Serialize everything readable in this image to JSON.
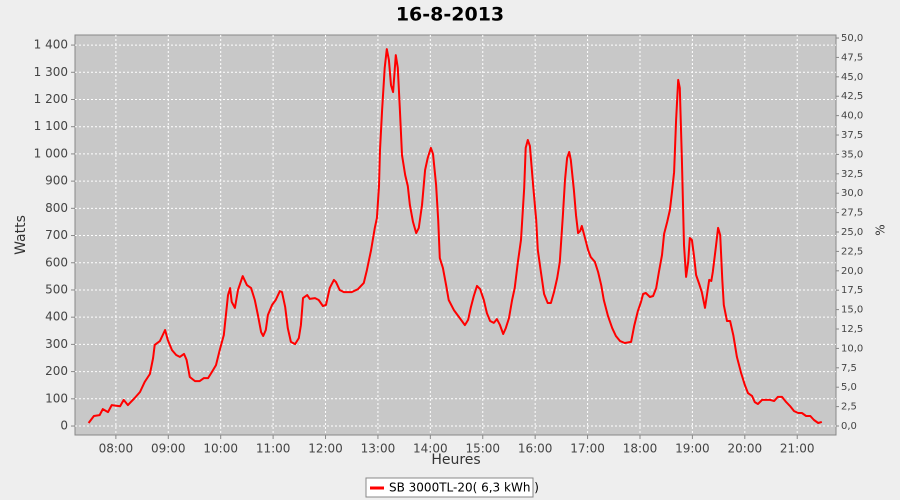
{
  "chart_data": {
    "type": "line",
    "title": "16-8-2013",
    "xlabel": "Heures",
    "ylabel": "Watts",
    "y2label": "%",
    "grid": true,
    "xlim": [
      7.22,
      21.74
    ],
    "ylim": [
      -33,
      1437
    ],
    "y2lim": [
      -1.16,
      50.39
    ],
    "xticks": [
      {
        "value": 8,
        "label": "08:00"
      },
      {
        "value": 9,
        "label": "09:00"
      },
      {
        "value": 10,
        "label": "10:00"
      },
      {
        "value": 11,
        "label": "11:00"
      },
      {
        "value": 12,
        "label": "12:00"
      },
      {
        "value": 13,
        "label": "13:00"
      },
      {
        "value": 14,
        "label": "14:00"
      },
      {
        "value": 15,
        "label": "15:00"
      },
      {
        "value": 16,
        "label": "16:00"
      },
      {
        "value": 17,
        "label": "17:00"
      },
      {
        "value": 18,
        "label": "18:00"
      },
      {
        "value": 19,
        "label": "19:00"
      },
      {
        "value": 20,
        "label": "20:00"
      },
      {
        "value": 21,
        "label": "21:00"
      }
    ],
    "yticks": [
      0,
      100,
      200,
      300,
      400,
      500,
      600,
      700,
      800,
      900,
      {
        "value": 1000,
        "label": "1 000"
      },
      {
        "value": 1100,
        "label": "1 100"
      },
      {
        "value": 1200,
        "label": "1 200"
      },
      {
        "value": 1300,
        "label": "1 300"
      },
      {
        "value": 1400,
        "label": "1 400"
      }
    ],
    "y2ticks": [
      {
        "value": 0,
        "label": "0,0"
      },
      {
        "value": 2.5,
        "label": "2,5"
      },
      {
        "value": 5,
        "label": "5,0"
      },
      {
        "value": 7.5,
        "label": "7,5"
      },
      {
        "value": 10,
        "label": "10,0"
      },
      {
        "value": 12.5,
        "label": "12,5"
      },
      {
        "value": 15,
        "label": "15,0"
      },
      {
        "value": 17.5,
        "label": "17,5"
      },
      {
        "value": 20,
        "label": "20,0"
      },
      {
        "value": 22.5,
        "label": "22,5"
      },
      {
        "value": 25,
        "label": "25,0"
      },
      {
        "value": 27.5,
        "label": "27,5"
      },
      {
        "value": 30,
        "label": "30,0"
      },
      {
        "value": 32.5,
        "label": "32,5"
      },
      {
        "value": 35,
        "label": "35,0"
      },
      {
        "value": 37.5,
        "label": "37,5"
      },
      {
        "value": 40,
        "label": "40,0"
      },
      {
        "value": 42.5,
        "label": "42,5"
      },
      {
        "value": 45,
        "label": "45,0"
      },
      {
        "value": 47.5,
        "label": "47,5"
      },
      {
        "value": 50,
        "label": "50,0"
      }
    ],
    "x": [
      7.48,
      7.58,
      7.69,
      7.75,
      7.85,
      7.92,
      8.08,
      8.15,
      8.23,
      8.36,
      8.46,
      8.55,
      8.65,
      8.71,
      8.74,
      8.84,
      8.94,
      8.99,
      9.07,
      9.15,
      9.22,
      9.3,
      9.35,
      9.41,
      9.51,
      9.6,
      9.68,
      9.76,
      9.83,
      9.91,
      9.98,
      10.06,
      10.14,
      10.18,
      10.21,
      10.27,
      10.33,
      10.42,
      10.5,
      10.58,
      10.65,
      10.71,
      10.77,
      10.81,
      10.86,
      10.9,
      10.98,
      11.05,
      11.13,
      11.17,
      11.23,
      11.28,
      11.34,
      11.42,
      11.49,
      11.53,
      11.57,
      11.65,
      11.7,
      11.8,
      11.87,
      11.95,
      12.01,
      12.08,
      12.16,
      12.2,
      12.27,
      12.35,
      12.5,
      12.62,
      12.73,
      12.79,
      12.87,
      12.94,
      12.98,
      13.02,
      13.04,
      13.08,
      13.13,
      13.17,
      13.21,
      13.25,
      13.29,
      13.32,
      13.34,
      13.38,
      13.42,
      13.46,
      13.52,
      13.57,
      13.61,
      13.67,
      13.73,
      13.78,
      13.84,
      13.9,
      13.95,
      14.01,
      14.05,
      14.11,
      14.15,
      14.18,
      14.24,
      14.3,
      14.35,
      14.45,
      14.56,
      14.66,
      14.72,
      14.77,
      14.83,
      14.89,
      14.95,
      15.02,
      15.08,
      15.14,
      15.21,
      15.27,
      15.33,
      15.39,
      15.44,
      15.5,
      15.56,
      15.61,
      15.67,
      15.73,
      15.79,
      15.82,
      15.86,
      15.9,
      15.96,
      16.02,
      16.05,
      16.11,
      16.17,
      16.24,
      16.3,
      16.36,
      16.42,
      16.47,
      16.53,
      16.57,
      16.61,
      16.65,
      16.68,
      16.74,
      16.78,
      16.82,
      16.86,
      16.89,
      16.95,
      17.01,
      17.06,
      17.14,
      17.2,
      17.26,
      17.31,
      17.39,
      17.47,
      17.54,
      17.62,
      17.71,
      17.83,
      17.89,
      17.96,
      18.02,
      18.06,
      18.11,
      18.19,
      18.25,
      18.31,
      18.36,
      18.42,
      18.46,
      18.52,
      18.57,
      18.61,
      18.65,
      18.69,
      18.73,
      18.76,
      18.8,
      18.84,
      18.88,
      18.92,
      18.95,
      18.99,
      19.03,
      19.07,
      19.13,
      19.18,
      19.24,
      19.28,
      19.32,
      19.36,
      19.39,
      19.45,
      19.49,
      19.53,
      19.57,
      19.6,
      19.66,
      19.72,
      19.78,
      19.85,
      19.93,
      20.0,
      20.06,
      20.14,
      20.19,
      20.25,
      20.33,
      20.48,
      20.56,
      20.63,
      20.71,
      20.79,
      20.86,
      20.94,
      21.02,
      21.09,
      21.17,
      21.25,
      21.32,
      21.4,
      21.47
    ],
    "series": [
      {
        "name": "SB 3000TL-20( 6,3 kWh )",
        "color": "#ff0000",
        "values": [
          11,
          37,
          40,
          62,
          51,
          77,
          73,
          96,
          77,
          103,
          125,
          162,
          191,
          250,
          298,
          312,
          353,
          316,
          279,
          261,
          254,
          265,
          243,
          180,
          165,
          165,
          176,
          176,
          198,
          224,
          279,
          334,
          481,
          507,
          456,
          434,
          500,
          551,
          518,
          507,
          463,
          408,
          345,
          331,
          353,
          408,
          445,
          463,
          496,
          492,
          437,
          360,
          309,
          301,
          323,
          371,
          470,
          481,
          467,
          470,
          463,
          441,
          445,
          507,
          537,
          529,
          500,
          492,
          492,
          503,
          526,
          573,
          647,
          728,
          764,
          882,
          1014,
          1161,
          1316,
          1385,
          1345,
          1253,
          1227,
          1308,
          1363,
          1316,
          1161,
          996,
          922,
          882,
          812,
          750,
          709,
          728,
          812,
          941,
          985,
          1022,
          1000,
          886,
          757,
          617,
          581,
          518,
          463,
          426,
          397,
          371,
          390,
          434,
          478,
          515,
          503,
          463,
          415,
          386,
          379,
          393,
          371,
          338,
          360,
          397,
          463,
          507,
          603,
          684,
          875,
          1022,
          1051,
          1029,
          886,
          757,
          647,
          566,
          485,
          452,
          452,
          492,
          544,
          603,
          775,
          904,
          985,
          1007,
          978,
          867,
          775,
          709,
          717,
          735,
          691,
          647,
          621,
          603,
          566,
          518,
          463,
          404,
          360,
          331,
          312,
          305,
          309,
          368,
          423,
          456,
          485,
          489,
          474,
          478,
          507,
          566,
          628,
          706,
          750,
          794,
          860,
          933,
          1125,
          1272,
          1242,
          978,
          665,
          548,
          603,
          691,
          684,
          625,
          555,
          522,
          492,
          434,
          485,
          537,
          533,
          566,
          662,
          728,
          702,
          537,
          445,
          386,
          386,
          334,
          254,
          195,
          151,
          121,
          110,
          88,
          81,
          96,
          96,
          92,
          107,
          107,
          88,
          74,
          55,
          48,
          48,
          37,
          37,
          22,
          11,
          15
        ]
      }
    ]
  }
}
